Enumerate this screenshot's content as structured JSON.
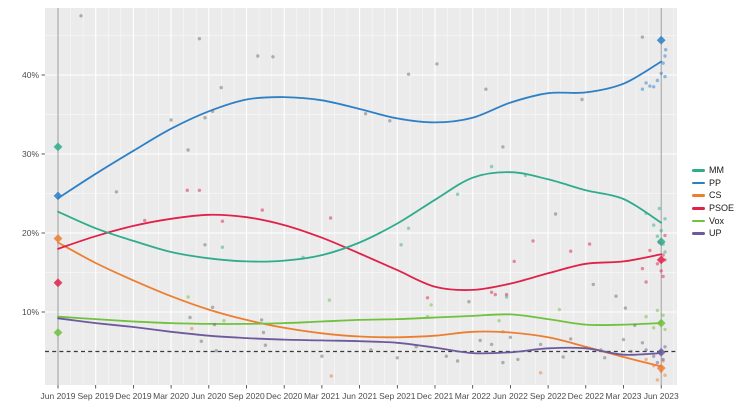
{
  "chart_data": {
    "type": "line",
    "subtype": "loess-smoothed polling trends with poll scatter points and election-result diamonds",
    "title": "",
    "xlabel": "",
    "ylabel": "",
    "x_tick_labels": [
      "Jun 2019",
      "Sep 2019",
      "Dec 2019",
      "Mar 2020",
      "Jun 2020",
      "Sep 2020",
      "Dec 2020",
      "Mar 2021",
      "Jun 2021",
      "Sep 2021",
      "Dec 2021",
      "Mar 2022",
      "Jun 2022",
      "Sep 2022",
      "Dec 2022",
      "Mar 2023",
      "Jun 2023"
    ],
    "y_ticks": [
      {
        "label": "10%",
        "value": 10
      },
      {
        "label": "20%",
        "value": 20
      },
      {
        "label": "30%",
        "value": 30
      },
      {
        "label": "40%",
        "value": 40
      }
    ],
    "ylim": [
      0,
      48
    ],
    "grid": true,
    "legend_position": "right",
    "threshold_line": {
      "value": 5,
      "style": "dashed",
      "color": "#3a3a3a"
    },
    "election_vlines": [
      "Jun 2019",
      "Jun 2023"
    ],
    "series": [
      {
        "key": "mm",
        "name": "MM",
        "color": "#2fac8c",
        "values": [
          22.7,
          20.6,
          19.0,
          17.6,
          16.8,
          16.4,
          16.5,
          17.2,
          18.8,
          21.2,
          24.2,
          27.0,
          27.7,
          26.8,
          25.4,
          24.3,
          21.3
        ]
      },
      {
        "key": "pp",
        "name": "PP",
        "color": "#2e80c6",
        "values": [
          24.4,
          27.5,
          30.4,
          33.2,
          35.4,
          36.9,
          37.2,
          36.8,
          35.7,
          34.5,
          34.0,
          34.6,
          36.5,
          37.7,
          37.8,
          38.9,
          41.7
        ]
      },
      {
        "key": "cs",
        "name": "CS",
        "color": "#ec7e31",
        "values": [
          18.8,
          16.2,
          14.0,
          12.0,
          10.3,
          9.0,
          8.0,
          7.3,
          6.9,
          6.8,
          7.0,
          7.5,
          7.4,
          6.8,
          5.6,
          4.3,
          3.1
        ]
      },
      {
        "key": "psoe",
        "name": "PSOE",
        "color": "#e0224b",
        "values": [
          18.0,
          19.6,
          20.9,
          21.8,
          22.3,
          22.0,
          21.0,
          19.4,
          17.4,
          15.3,
          13.2,
          12.8,
          13.6,
          14.9,
          16.1,
          16.4,
          17.3
        ]
      },
      {
        "key": "vox",
        "name": "Vox",
        "color": "#70c13e",
        "values": [
          9.4,
          9.1,
          8.8,
          8.6,
          8.5,
          8.5,
          8.6,
          8.8,
          9.0,
          9.1,
          9.3,
          9.5,
          9.7,
          9.1,
          8.4,
          8.4,
          8.6
        ]
      },
      {
        "key": "up",
        "name": "UP",
        "color": "#6c5a9d",
        "values": [
          9.2,
          8.6,
          8.1,
          7.5,
          7.0,
          6.7,
          6.5,
          6.4,
          6.3,
          6.1,
          5.5,
          4.8,
          4.9,
          5.4,
          5.4,
          4.6,
          4.8
        ]
      }
    ],
    "draw_order": [
      "cs",
      "vox",
      "up",
      "psoe",
      "mm",
      "pp"
    ],
    "election_results": [
      {
        "date": "Jun 2019",
        "x_index": 0,
        "results": [
          {
            "party": "MM",
            "value": 30.9
          },
          {
            "party": "PP",
            "value": 24.7
          },
          {
            "party": "CS",
            "value": 19.3
          },
          {
            "party": "PSOE",
            "value": 13.7
          },
          {
            "party": "Vox",
            "value": 7.4
          }
        ]
      },
      {
        "date": "Jun 2023",
        "x_index": 16,
        "results": [
          {
            "party": "PP",
            "value": 44.4
          },
          {
            "party": "MM",
            "value": 18.9
          },
          {
            "party": "PSOE",
            "value": 16.6
          },
          {
            "party": "Vox",
            "value": 8.6
          },
          {
            "party": "UP",
            "value": 4.9
          },
          {
            "party": "CS",
            "value": 2.9
          }
        ]
      }
    ],
    "scatter_points": [
      [
        0.61,
        47.5,
        "gray"
      ],
      [
        3.75,
        44.6,
        "gray"
      ],
      [
        5.3,
        42.4,
        "gray"
      ],
      [
        5.7,
        42.3,
        "gray"
      ],
      [
        10.05,
        41.4,
        "gray"
      ],
      [
        9.3,
        40.1,
        "gray"
      ],
      [
        4.33,
        38.4,
        "gray"
      ],
      [
        11.35,
        38.2,
        "gray"
      ],
      [
        13.9,
        36.9,
        "gray"
      ],
      [
        8.16,
        35.1,
        "gray"
      ],
      [
        8.8,
        34.2,
        "gray"
      ],
      [
        4.1,
        35.4,
        "gray"
      ],
      [
        3.0,
        34.3,
        "gray"
      ],
      [
        3.9,
        34.6,
        "gray"
      ],
      [
        3.45,
        30.5,
        "gray"
      ],
      [
        11.8,
        30.9,
        "gray"
      ],
      [
        1.55,
        25.2,
        "gray"
      ],
      [
        3.43,
        25.4,
        "psoe"
      ],
      [
        3.75,
        25.4,
        "psoe"
      ],
      [
        4.36,
        21.5,
        "psoe"
      ],
      [
        5.42,
        22.9,
        "psoe"
      ],
      [
        2.3,
        21.6,
        "psoe"
      ],
      [
        7.23,
        21.9,
        "psoe"
      ],
      [
        9.8,
        11.8,
        "psoe"
      ],
      [
        11.5,
        12.5,
        "psoe"
      ],
      [
        11.9,
        12.2,
        "psoe"
      ],
      [
        13.6,
        17.7,
        "psoe"
      ],
      [
        14.1,
        18.6,
        "psoe"
      ],
      [
        12.6,
        19.0,
        "psoe"
      ],
      [
        12.1,
        16.4,
        "psoe"
      ],
      [
        11.6,
        12.2,
        "psoe"
      ],
      [
        3.9,
        18.5,
        "gray"
      ],
      [
        4.36,
        18.2,
        "mm"
      ],
      [
        6.5,
        16.9,
        "mm"
      ],
      [
        9.3,
        20.6,
        "mm"
      ],
      [
        9.1,
        18.5,
        "mm"
      ],
      [
        12.4,
        27.3,
        "mm"
      ],
      [
        11.5,
        28.4,
        "mm"
      ],
      [
        10.6,
        24.9,
        "mm"
      ],
      [
        11.9,
        11.9,
        "mm"
      ],
      [
        13.2,
        22.4,
        "gray"
      ],
      [
        3.45,
        11.9,
        "vox"
      ],
      [
        7.2,
        11.5,
        "vox"
      ],
      [
        9.8,
        9.4,
        "vox"
      ],
      [
        9.9,
        10.9,
        "vox"
      ],
      [
        13.3,
        10.3,
        "vox"
      ],
      [
        11.7,
        8.9,
        "vox"
      ],
      [
        4.4,
        8.9,
        "vox"
      ],
      [
        4.1,
        10.6,
        "gray"
      ],
      [
        4.15,
        8.4,
        "gray"
      ],
      [
        3.5,
        9.3,
        "gray"
      ],
      [
        3.55,
        7.9,
        "cs"
      ],
      [
        11.8,
        7.5,
        "cs"
      ],
      [
        7.25,
        1.9,
        "cs"
      ],
      [
        12.8,
        2.3,
        "cs"
      ],
      [
        3.8,
        6.3,
        "gray"
      ],
      [
        4.2,
        5.1,
        "gray"
      ],
      [
        5.4,
        9.0,
        "gray"
      ],
      [
        5.45,
        7.4,
        "gray"
      ],
      [
        5.5,
        5.8,
        "gray"
      ],
      [
        10.9,
        11.3,
        "gray"
      ],
      [
        9.0,
        4.2,
        "gray"
      ],
      [
        9.5,
        5.6,
        "gray"
      ],
      [
        10.3,
        4.4,
        "gray"
      ],
      [
        10.6,
        3.8,
        "gray"
      ],
      [
        11.2,
        6.4,
        "gray"
      ],
      [
        12.2,
        4.0,
        "gray"
      ],
      [
        8.3,
        5.2,
        "gray"
      ],
      [
        7.0,
        4.4,
        "gray"
      ],
      [
        12.0,
        6.8,
        "gray"
      ],
      [
        11.5,
        5.9,
        "gray"
      ],
      [
        11.8,
        3.6,
        "gray"
      ],
      [
        12.8,
        5.9,
        "gray"
      ],
      [
        13.4,
        4.3,
        "gray"
      ],
      [
        13.6,
        6.6,
        "gray"
      ],
      [
        14.4,
        5.2,
        "gray"
      ],
      [
        14.8,
        12.0,
        "gray"
      ],
      [
        15.0,
        6.5,
        "gray"
      ],
      [
        15.2,
        5.0,
        "gray"
      ],
      [
        14.5,
        4.2,
        "gray"
      ],
      [
        15.3,
        8.3,
        "gray"
      ],
      [
        14.2,
        13.5,
        "gray"
      ],
      [
        15.05,
        10.5,
        "gray"
      ],
      [
        15.5,
        6.1,
        "gray"
      ],
      [
        15.5,
        44.8,
        "gray"
      ],
      [
        15.5,
        38.2,
        "pp"
      ],
      [
        15.6,
        39.0,
        "pp"
      ],
      [
        15.7,
        38.6,
        "pp"
      ],
      [
        15.8,
        38.5,
        "pp"
      ],
      [
        15.9,
        39.3,
        "pp"
      ],
      [
        16.0,
        40.2,
        "pp"
      ],
      [
        16.05,
        41.5,
        "pp"
      ],
      [
        16.1,
        39.8,
        "pp"
      ],
      [
        16.12,
        43.2,
        "pp"
      ],
      [
        16.1,
        42.4,
        "pp"
      ],
      [
        15.6,
        22.5,
        "mm"
      ],
      [
        15.8,
        21.0,
        "mm"
      ],
      [
        15.9,
        19.6,
        "mm"
      ],
      [
        16.0,
        20.3,
        "mm"
      ],
      [
        16.05,
        18.6,
        "mm"
      ],
      [
        16.1,
        21.8,
        "mm"
      ],
      [
        15.95,
        23.1,
        "mm"
      ],
      [
        16.1,
        17.6,
        "mm"
      ],
      [
        15.5,
        15.5,
        "psoe"
      ],
      [
        15.7,
        17.8,
        "psoe"
      ],
      [
        15.9,
        16.1,
        "psoe"
      ],
      [
        16.0,
        15.2,
        "psoe"
      ],
      [
        16.05,
        17.2,
        "psoe"
      ],
      [
        16.1,
        16.6,
        "psoe"
      ],
      [
        15.95,
        18.8,
        "psoe"
      ],
      [
        16.05,
        14.5,
        "psoe"
      ],
      [
        15.6,
        13.8,
        "psoe"
      ],
      [
        16.1,
        19.7,
        "psoe"
      ],
      [
        15.6,
        9.4,
        "vox"
      ],
      [
        15.8,
        8.0,
        "vox"
      ],
      [
        16.0,
        8.8,
        "vox"
      ],
      [
        16.05,
        9.6,
        "vox"
      ],
      [
        16.1,
        7.8,
        "vox"
      ],
      [
        15.9,
        10.2,
        "vox"
      ],
      [
        15.6,
        4.0,
        "cs"
      ],
      [
        15.8,
        3.2,
        "cs"
      ],
      [
        16.0,
        2.5,
        "cs"
      ],
      [
        16.05,
        3.8,
        "cs"
      ],
      [
        16.1,
        2.0,
        "cs"
      ],
      [
        15.9,
        1.4,
        "cs"
      ],
      [
        15.6,
        5.2,
        "up"
      ],
      [
        15.8,
        4.4,
        "up"
      ],
      [
        16.0,
        5.0,
        "up"
      ],
      [
        16.05,
        4.0,
        "up"
      ],
      [
        16.1,
        5.6,
        "up"
      ],
      [
        15.9,
        3.6,
        "up"
      ]
    ],
    "scatter_gray_color": "#6e6e6e",
    "panel_color": "#ebebeb",
    "grid_major_color": "#ffffff",
    "grid_minor_color": "#f7f7f7",
    "election_vline_color": "#9b9b9b",
    "axis_text_color": "#4d4d4d"
  },
  "legend": {
    "items": [
      {
        "label": "MM",
        "color": "#2fac8c"
      },
      {
        "label": "PP",
        "color": "#2e80c6"
      },
      {
        "label": "CS",
        "color": "#ec7e31"
      },
      {
        "label": "PSOE",
        "color": "#e0224b"
      },
      {
        "label": "Vox",
        "color": "#70c13e"
      },
      {
        "label": "UP",
        "color": "#6c5a9d"
      }
    ]
  }
}
